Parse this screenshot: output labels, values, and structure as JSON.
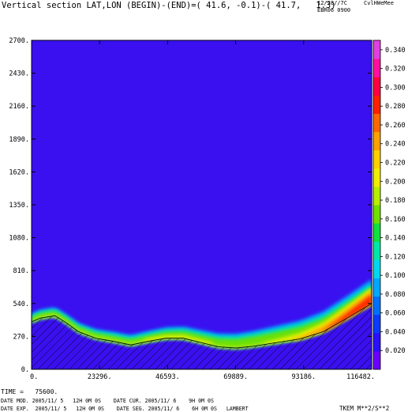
{
  "header": {
    "title": "Vertical section LAT,LON (BEGIN)-(END)=( 41.6, -0.1)-( 41.7,   1.3)",
    "top_right_line1": "12/28//7C     CvlHWeMee",
    "top_right_line2": "EBR06 0900"
  },
  "footer": {
    "time": "TIME =   75600.",
    "line1": "DATE MOD. 2005/11/ 5   12H 0M 0S    DATE CUR. 2005/11/ 6    9H 0M 0S",
    "line2": "DATE EXP.  2005/11/ 5   12H 0M 0S    DATE SEG. 2005/11/ 6    6H 0M 0S   LAMBERT",
    "variable": "TKEM M**2/S**2"
  },
  "chart_data": {
    "type": "heatmap",
    "title": "Vertical section LAT,LON (BEGIN)-(END)=( 41.6, -0.1)-( 41.7,   1.3)",
    "variable": "TKEM M**2/S**2",
    "xlim": [
      0,
      116482
    ],
    "ylim": [
      0,
      2700
    ],
    "x_ticks": [
      "0.",
      "23296.",
      "46593.",
      "69889.",
      "93186.",
      "116482."
    ],
    "y_ticks": [
      "0.",
      "270.",
      "540.",
      "810.",
      "1080.",
      "1350.",
      "1620.",
      "1890.",
      "2160.",
      "2430.",
      "2700."
    ],
    "x_tick_values": [
      0,
      23296,
      46593,
      69889,
      93186,
      116482
    ],
    "y_tick_values": [
      0,
      270,
      540,
      810,
      1080,
      1350,
      1620,
      1890,
      2160,
      2430,
      2700
    ],
    "colorbar": {
      "levels": [
        "0.020",
        "0.040",
        "0.060",
        "0.080",
        "0.100",
        "0.120",
        "0.140",
        "0.160",
        "0.180",
        "0.200",
        "0.220",
        "0.240",
        "0.260",
        "0.280",
        "0.300",
        "0.320",
        "0.340"
      ],
      "level_values": [
        0.02,
        0.04,
        0.06,
        0.08,
        0.1,
        0.12,
        0.14,
        0.16,
        0.18,
        0.2,
        0.22,
        0.24,
        0.26,
        0.28,
        0.3,
        0.32,
        0.34
      ],
      "range": [
        0,
        0.35
      ],
      "colors": [
        "#6a00ff",
        "#2a10ff",
        "#0a3cff",
        "#0070ff",
        "#00a8ff",
        "#00d8f0",
        "#00e8a8",
        "#10e040",
        "#70e000",
        "#b8ee00",
        "#f0f000",
        "#ffd000",
        "#ffa000",
        "#ff6800",
        "#ff2000",
        "#ff0040",
        "#ff10a0",
        "#e040e0"
      ]
    },
    "terrain_height": [
      {
        "x": 0,
        "y": 390
      },
      {
        "x": 3000,
        "y": 420
      },
      {
        "x": 8000,
        "y": 440
      },
      {
        "x": 12000,
        "y": 380
      },
      {
        "x": 16000,
        "y": 310
      },
      {
        "x": 22000,
        "y": 255
      },
      {
        "x": 28000,
        "y": 230
      },
      {
        "x": 34000,
        "y": 200
      },
      {
        "x": 40000,
        "y": 230
      },
      {
        "x": 46000,
        "y": 255
      },
      {
        "x": 52000,
        "y": 255
      },
      {
        "x": 58000,
        "y": 220
      },
      {
        "x": 64000,
        "y": 185
      },
      {
        "x": 70000,
        "y": 175
      },
      {
        "x": 76000,
        "y": 190
      },
      {
        "x": 84000,
        "y": 220
      },
      {
        "x": 92000,
        "y": 250
      },
      {
        "x": 100000,
        "y": 310
      },
      {
        "x": 108000,
        "y": 420
      },
      {
        "x": 116482,
        "y": 540
      }
    ],
    "field_background_value": 0.01
  }
}
